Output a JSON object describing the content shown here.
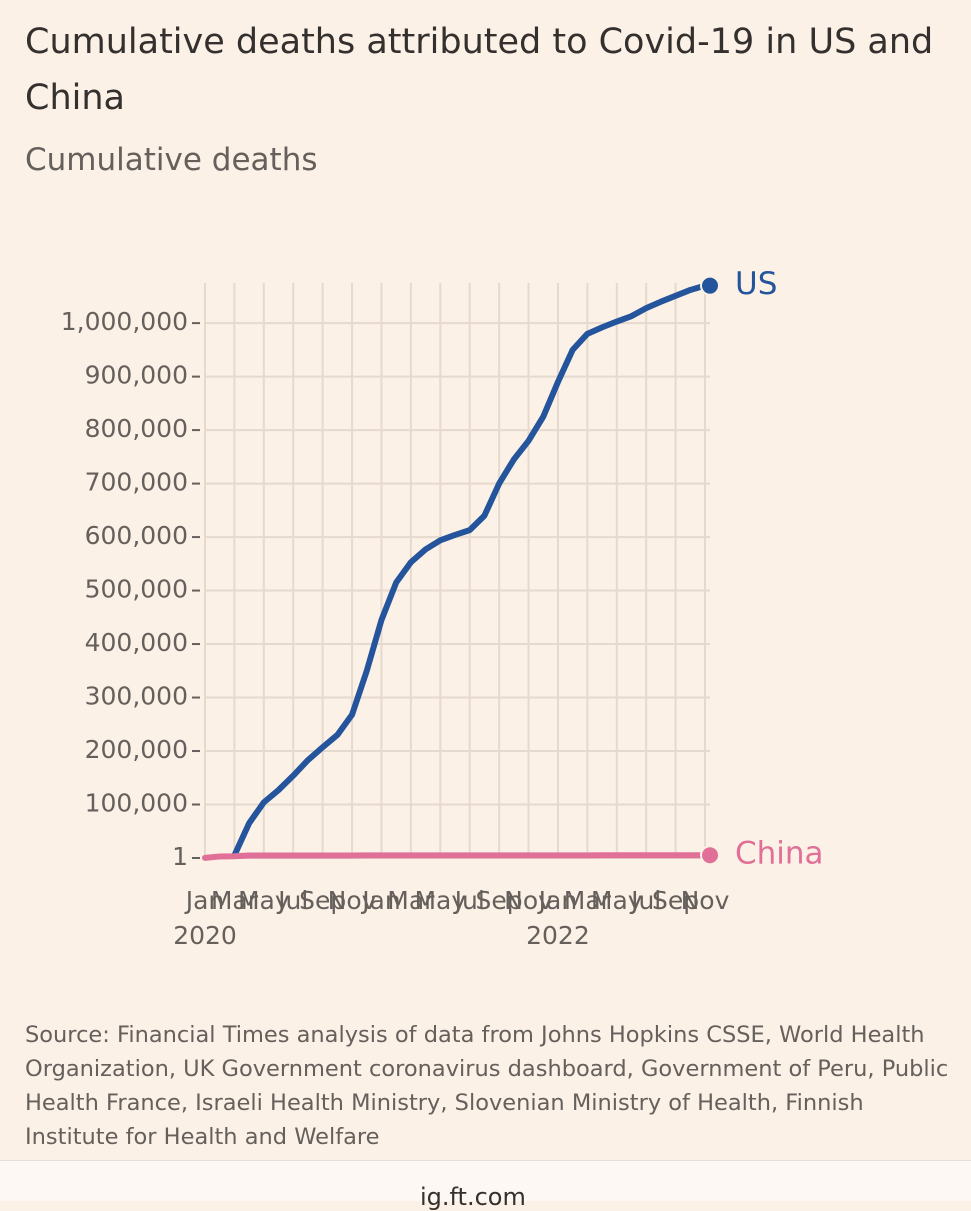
{
  "chart_data": {
    "type": "line",
    "title": "Cumulative deaths attributed to Covid-19 in US and China",
    "subtitle": "Cumulative deaths",
    "source": "Source: Financial Times analysis of data from Johns Hopkins CSSE, World Health Organization, UK Government coronavirus dashboard, Government of Peru, Public Health France, Israeli Health Ministry, Slovenian Ministry of Health, Finnish Institute for Health and Welfare",
    "footer": "ig.ft.com",
    "x": [
      "2020-01",
      "2020-02",
      "2020-03",
      "2020-04",
      "2020-05",
      "2020-06",
      "2020-07",
      "2020-08",
      "2020-09",
      "2020-10",
      "2020-11",
      "2020-12",
      "2021-01",
      "2021-02",
      "2021-03",
      "2021-04",
      "2021-05",
      "2021-06",
      "2021-07",
      "2021-08",
      "2021-09",
      "2021-10",
      "2021-11",
      "2021-12",
      "2022-01",
      "2022-02",
      "2022-03",
      "2022-04",
      "2022-05",
      "2022-06",
      "2022-07",
      "2022-08",
      "2022-09",
      "2022-10",
      "2022-11"
    ],
    "series": [
      {
        "name": "US",
        "color": "#24549c",
        "values": [
          null,
          null,
          5000,
          65000,
          104000,
          127000,
          154000,
          183000,
          207000,
          230000,
          268000,
          350000,
          445000,
          515000,
          553000,
          577000,
          594000,
          604000,
          613000,
          640000,
          700000,
          745000,
          780000,
          825000,
          890000,
          950000,
          980000,
          992000,
          1003000,
          1013000,
          1028000,
          1040000,
          1051000,
          1062000,
          1070000
        ]
      },
      {
        "name": "China",
        "color": "#e07097",
        "values": [
          200,
          2900,
          3300,
          4600,
          4600,
          4600,
          4600,
          4700,
          4700,
          4700,
          4700,
          4800,
          4800,
          4800,
          4800,
          4800,
          4800,
          4800,
          4800,
          4800,
          4800,
          4800,
          4800,
          4800,
          4800,
          4800,
          4800,
          5200,
          5200,
          5200,
          5200,
          5200,
          5200,
          5200,
          5200
        ]
      }
    ],
    "ylim": [
      1,
      1075000
    ],
    "yticks": [
      1,
      {
        "value": 100000,
        "label": "100,000"
      },
      {
        "value": 200000,
        "label": "200,000"
      },
      {
        "value": 300000,
        "label": "300,000"
      },
      {
        "value": 400000,
        "label": "400,000"
      },
      {
        "value": 500000,
        "label": "500,000"
      },
      {
        "value": 600000,
        "label": "600,000"
      },
      {
        "value": 700000,
        "label": "700,000"
      },
      {
        "value": 800000,
        "label": "800,000"
      },
      {
        "value": 900000,
        "label": "900,000"
      },
      {
        "value": 1000000,
        "label": "1,000,000"
      }
    ],
    "xlim": [
      "2020-01",
      "2022-11"
    ],
    "xticks": [
      {
        "value": "2020-01",
        "label": "Jan"
      },
      {
        "value": "2020-03",
        "label": "Mar"
      },
      {
        "value": "2020-05",
        "label": "May"
      },
      {
        "value": "2020-07",
        "label": "Jul"
      },
      {
        "value": "2020-09",
        "label": "Sep"
      },
      {
        "value": "2020-11",
        "label": "Nov"
      },
      {
        "value": "2021-01",
        "label": "Jan"
      },
      {
        "value": "2021-03",
        "label": "Mar"
      },
      {
        "value": "2021-05",
        "label": "May"
      },
      {
        "value": "2021-07",
        "label": "Jul"
      },
      {
        "value": "2021-09",
        "label": "Sep"
      },
      {
        "value": "2021-11",
        "label": "Nov"
      },
      {
        "value": "2022-01",
        "label": "Jan"
      },
      {
        "value": "2022-03",
        "label": "Mar"
      },
      {
        "value": "2022-05",
        "label": "May"
      },
      {
        "value": "2022-07",
        "label": "Jul"
      },
      {
        "value": "2022-09",
        "label": "Sep"
      },
      {
        "value": "2022-11",
        "label": "Nov"
      }
    ],
    "xtick_years": [
      {
        "value": "2020-01",
        "label": "2020"
      },
      {
        "value": "2022-01",
        "label": "2022"
      }
    ],
    "grid": true
  }
}
